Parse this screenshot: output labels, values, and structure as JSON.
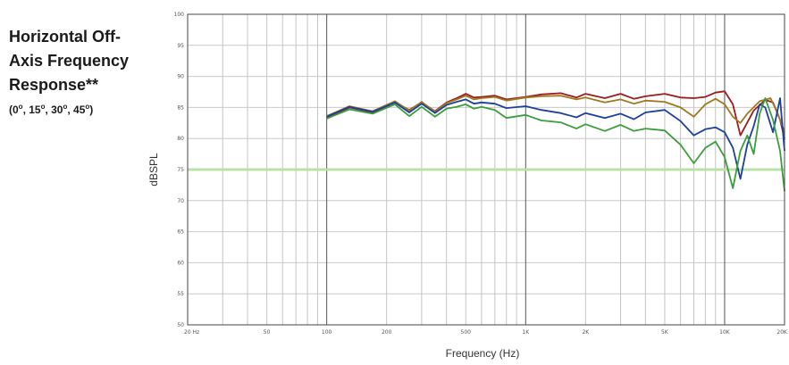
{
  "chart_data": {
    "type": "line",
    "title_lines": [
      "Horizontal Off-",
      "Axis Frequency",
      "Response**"
    ],
    "subtitle_parts": [
      "(0",
      "o",
      ", 15",
      "o",
      ", 30",
      "o",
      ", 45",
      "o",
      ")"
    ],
    "xlabel": "Frequency (Hz)",
    "ylabel": "dBSPL",
    "x_scale": "log",
    "xlim": [
      20,
      20000
    ],
    "ylim": [
      50,
      100
    ],
    "y_ticks": [
      "100",
      "95",
      "90",
      "85",
      "80",
      "75",
      "70",
      "65",
      "60",
      "55",
      "50"
    ],
    "x_ticks": [
      {
        "value": 20,
        "label": "20 Hz"
      },
      {
        "value": 50,
        "label": "50"
      },
      {
        "value": 100,
        "label": "100"
      },
      {
        "value": 200,
        "label": "200"
      },
      {
        "value": 500,
        "label": "500"
      },
      {
        "value": 1000,
        "label": "1K"
      },
      {
        "value": 2000,
        "label": "2K"
      },
      {
        "value": 5000,
        "label": "5K"
      },
      {
        "value": 10000,
        "label": "10K"
      },
      {
        "value": 20000,
        "label": "20K"
      }
    ],
    "reference_line": {
      "y": 75,
      "color": "#b8e2a8"
    },
    "grid": true,
    "series": [
      {
        "name": "0",
        "color": "#9b1c1c",
        "points": [
          [
            100,
            83.3
          ],
          [
            130,
            85
          ],
          [
            170,
            84.2
          ],
          [
            220,
            85.8
          ],
          [
            260,
            84.6
          ],
          [
            300,
            85.8
          ],
          [
            350,
            84.4
          ],
          [
            400,
            85.8
          ],
          [
            450,
            86.5
          ],
          [
            500,
            87.2
          ],
          [
            550,
            86.6
          ],
          [
            600,
            86.7
          ],
          [
            700,
            86.9
          ],
          [
            800,
            86.3
          ],
          [
            1000,
            86.7
          ],
          [
            1200,
            87.1
          ],
          [
            1500,
            87.3
          ],
          [
            1800,
            86.6
          ],
          [
            2000,
            87.2
          ],
          [
            2500,
            86.5
          ],
          [
            3000,
            87.2
          ],
          [
            3500,
            86.4
          ],
          [
            4000,
            86.8
          ],
          [
            5000,
            87.2
          ],
          [
            6000,
            86.6
          ],
          [
            7000,
            86.5
          ],
          [
            8000,
            86.7
          ],
          [
            9000,
            87.4
          ],
          [
            10000,
            87.6
          ],
          [
            11000,
            85.5
          ],
          [
            12000,
            80.5
          ],
          [
            14000,
            84.5
          ],
          [
            16000,
            86.2
          ],
          [
            17500,
            85.8
          ],
          [
            19000,
            83
          ],
          [
            20000,
            80
          ]
        ]
      },
      {
        "name": "15",
        "color": "#a07820",
        "points": [
          [
            100,
            83.6
          ],
          [
            130,
            85.2
          ],
          [
            170,
            84.4
          ],
          [
            220,
            86
          ],
          [
            260,
            84.5
          ],
          [
            300,
            85.9
          ],
          [
            350,
            84.3
          ],
          [
            400,
            85.7
          ],
          [
            450,
            86.3
          ],
          [
            500,
            86.9
          ],
          [
            550,
            86.3
          ],
          [
            600,
            86.5
          ],
          [
            700,
            86.7
          ],
          [
            800,
            86.1
          ],
          [
            1000,
            86.6
          ],
          [
            1200,
            86.8
          ],
          [
            1500,
            86.9
          ],
          [
            1800,
            86.3
          ],
          [
            2000,
            86.6
          ],
          [
            2500,
            85.8
          ],
          [
            3000,
            86.3
          ],
          [
            3500,
            85.6
          ],
          [
            4000,
            86.1
          ],
          [
            5000,
            85.9
          ],
          [
            6000,
            85
          ],
          [
            7000,
            83.5
          ],
          [
            8000,
            85.5
          ],
          [
            9000,
            86.4
          ],
          [
            10000,
            85.5
          ],
          [
            11000,
            83.5
          ],
          [
            12000,
            82.5
          ],
          [
            13000,
            84
          ],
          [
            15000,
            86
          ],
          [
            17000,
            86.5
          ],
          [
            18500,
            84
          ],
          [
            20000,
            81
          ]
        ]
      },
      {
        "name": "30",
        "color": "#1d3fa0",
        "points": [
          [
            100,
            83.5
          ],
          [
            130,
            85.1
          ],
          [
            170,
            84.3
          ],
          [
            220,
            85.8
          ],
          [
            260,
            84.2
          ],
          [
            300,
            85.6
          ],
          [
            350,
            84.1
          ],
          [
            400,
            85.4
          ],
          [
            450,
            85.9
          ],
          [
            500,
            86.3
          ],
          [
            550,
            85.6
          ],
          [
            600,
            85.8
          ],
          [
            700,
            85.6
          ],
          [
            800,
            84.9
          ],
          [
            1000,
            85.2
          ],
          [
            1200,
            84.6
          ],
          [
            1500,
            84.1
          ],
          [
            1800,
            83.4
          ],
          [
            2000,
            84.1
          ],
          [
            2500,
            83.3
          ],
          [
            3000,
            84
          ],
          [
            3500,
            83.1
          ],
          [
            4000,
            84.2
          ],
          [
            5000,
            84.6
          ],
          [
            6000,
            82.8
          ],
          [
            7000,
            80.5
          ],
          [
            8000,
            81.5
          ],
          [
            9000,
            81.8
          ],
          [
            10000,
            81
          ],
          [
            11000,
            78.5
          ],
          [
            12000,
            73.5
          ],
          [
            13000,
            79
          ],
          [
            14000,
            82
          ],
          [
            15000,
            85.5
          ],
          [
            16000,
            85
          ],
          [
            17500,
            81
          ],
          [
            19000,
            86.5
          ],
          [
            20000,
            78
          ]
        ]
      },
      {
        "name": "45",
        "color": "#3a9e3a",
        "points": [
          [
            100,
            83.2
          ],
          [
            130,
            84.7
          ],
          [
            170,
            84
          ],
          [
            220,
            85.5
          ],
          [
            260,
            83.6
          ],
          [
            300,
            85.1
          ],
          [
            350,
            83.5
          ],
          [
            400,
            84.8
          ],
          [
            450,
            85.1
          ],
          [
            500,
            85.5
          ],
          [
            550,
            84.8
          ],
          [
            600,
            85.1
          ],
          [
            700,
            84.6
          ],
          [
            800,
            83.3
          ],
          [
            1000,
            83.8
          ],
          [
            1200,
            82.9
          ],
          [
            1500,
            82.6
          ],
          [
            1800,
            81.6
          ],
          [
            2000,
            82.3
          ],
          [
            2500,
            81.2
          ],
          [
            3000,
            82.2
          ],
          [
            3500,
            81.2
          ],
          [
            4000,
            81.6
          ],
          [
            5000,
            81.3
          ],
          [
            6000,
            79
          ],
          [
            7000,
            76
          ],
          [
            8000,
            78.5
          ],
          [
            9000,
            79.5
          ],
          [
            10000,
            77
          ],
          [
            11000,
            72
          ],
          [
            12000,
            78
          ],
          [
            13000,
            80.5
          ],
          [
            14000,
            77.5
          ],
          [
            15000,
            84
          ],
          [
            16000,
            86.5
          ],
          [
            17500,
            83
          ],
          [
            19000,
            78
          ],
          [
            20000,
            71.5
          ]
        ]
      }
    ]
  }
}
